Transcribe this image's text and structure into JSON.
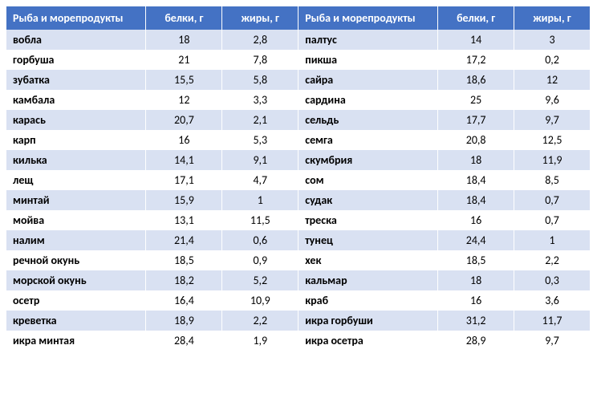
{
  "table": {
    "type": "table",
    "background_color": "#ffffff",
    "header_bg": "#4472c4",
    "header_text_color": "#ffffff",
    "row_even_bg": "#d9e1f2",
    "row_odd_bg": "#ffffff",
    "font_family": "Calibri",
    "header_fontsize": 14,
    "cell_fontsize": 14,
    "columns": [
      {
        "label": "Рыба и морепродукты",
        "align": "left",
        "width_pct": 22
      },
      {
        "label": "белки, г",
        "align": "center",
        "width_pct": 12
      },
      {
        "label": "жиры, г",
        "align": "center",
        "width_pct": 12
      },
      {
        "label": "Рыба и морепродукты",
        "align": "left",
        "width_pct": 22
      },
      {
        "label": "белки, г",
        "align": "center",
        "width_pct": 12
      },
      {
        "label": "жиры, г",
        "align": "center",
        "width_pct": 12
      }
    ],
    "rows": [
      [
        "вобла",
        "18",
        "2,8",
        "палтус",
        "14",
        "3"
      ],
      [
        "горбуша",
        "21",
        "7,8",
        "пикша",
        "17,2",
        "0,2"
      ],
      [
        "зубатка",
        "15,5",
        "5,8",
        "сайра",
        "18,6",
        "12"
      ],
      [
        "камбала",
        "12",
        "3,3",
        "сардина",
        "25",
        "9,6"
      ],
      [
        "карась",
        "20,7",
        "2,1",
        "сельдь",
        "17,7",
        "9,7"
      ],
      [
        "карп",
        "16",
        "5,3",
        "семга",
        "20,8",
        "12,5"
      ],
      [
        "килька",
        "14,1",
        "9,1",
        "скумбрия",
        "18",
        "11,9"
      ],
      [
        "лещ",
        "17,1",
        "4,7",
        "сом",
        "18,4",
        "8,5"
      ],
      [
        "минтай",
        "15,9",
        "1",
        "судак",
        "18,4",
        "0,7"
      ],
      [
        "мойва",
        "13,1",
        "11,5",
        "треска",
        "16",
        "0,7"
      ],
      [
        "налим",
        "21,4",
        "0,6",
        "тунец",
        "24,4",
        "1"
      ],
      [
        "речной окунь",
        "18,5",
        "0,9",
        "хек",
        "18,5",
        "2,2"
      ],
      [
        "морской окунь",
        "18,2",
        "5,2",
        "кальмар",
        "18",
        "0,3"
      ],
      [
        "осетр",
        "16,4",
        "10,9",
        "краб",
        "16",
        "3,6"
      ],
      [
        "креветка",
        "18,9",
        "2,2",
        "икра горбуши",
        "31,2",
        "11,7"
      ],
      [
        "икра минтая",
        "28,4",
        "1,9",
        "икра осетра",
        "28,9",
        "9,7"
      ]
    ]
  }
}
